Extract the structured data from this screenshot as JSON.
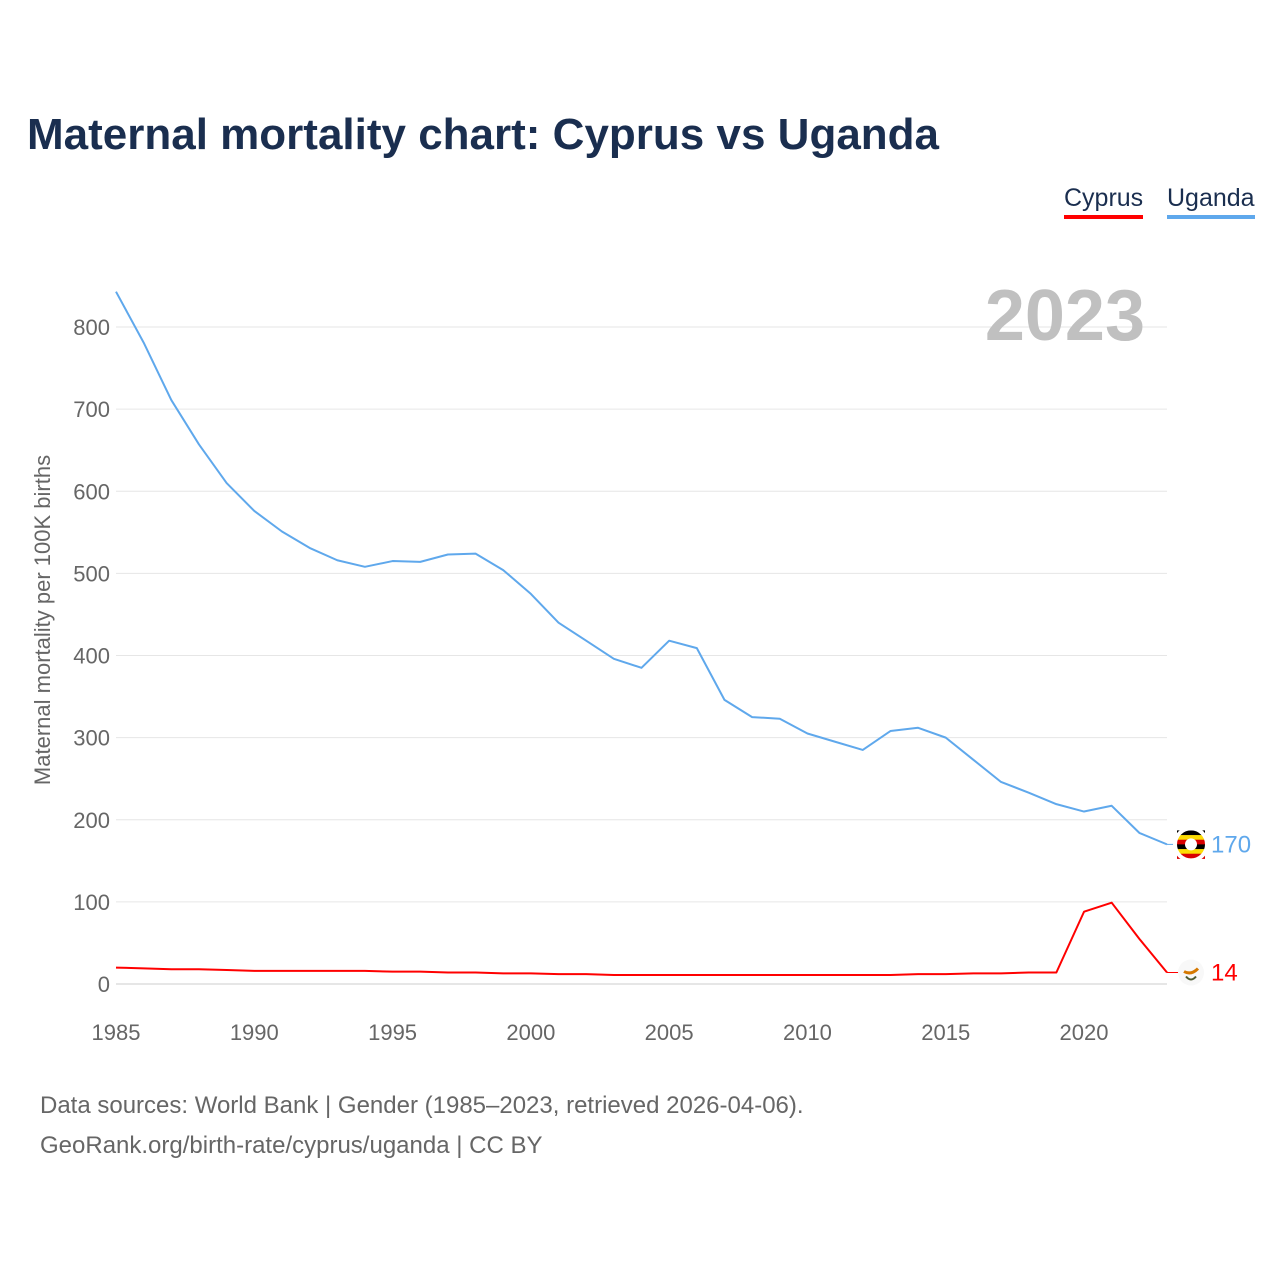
{
  "title": "Maternal mortality chart: Cyprus vs Uganda",
  "footer": {
    "line1": "Data sources: World Bank | Gender (1985–2023, retrieved 2026-04-06).",
    "line2": "GeoRank.org/birth-rate/cyprus/uganda | CC BY"
  },
  "chart_data": {
    "type": "line",
    "title": "Maternal mortality chart: Cyprus vs Uganda",
    "ylabel": "Maternal mortality per 100K births",
    "xlabel": "",
    "year_label": "2023",
    "xlim": [
      1985,
      2023
    ],
    "ylim": [
      0,
      850
    ],
    "xticks": [
      1985,
      1990,
      1995,
      2000,
      2005,
      2010,
      2015,
      2020
    ],
    "yticks": [
      0,
      100,
      200,
      300,
      400,
      500,
      600,
      700,
      800
    ],
    "grid": true,
    "legend_position": "top-right",
    "x": [
      1985,
      1986,
      1987,
      1988,
      1989,
      1990,
      1991,
      1992,
      1993,
      1994,
      1995,
      1996,
      1997,
      1998,
      1999,
      2000,
      2001,
      2002,
      2003,
      2004,
      2005,
      2006,
      2007,
      2008,
      2009,
      2010,
      2011,
      2012,
      2013,
      2014,
      2015,
      2016,
      2017,
      2018,
      2019,
      2020,
      2021,
      2022,
      2023
    ],
    "series": [
      {
        "name": "Cyprus",
        "color": "#ff0000",
        "end_label": "14",
        "values": [
          20,
          19,
          18,
          18,
          17,
          16,
          16,
          16,
          16,
          16,
          15,
          15,
          14,
          14,
          13,
          13,
          12,
          12,
          11,
          11,
          11,
          11,
          11,
          11,
          11,
          11,
          11,
          11,
          11,
          12,
          12,
          13,
          13,
          14,
          14,
          88,
          99,
          55,
          14
        ]
      },
      {
        "name": "Uganda",
        "color": "#5fa8ec",
        "end_label": "170",
        "values": [
          843,
          781,
          711,
          657,
          610,
          576,
          551,
          531,
          516,
          508,
          515,
          514,
          523,
          524,
          504,
          475,
          440,
          418,
          396,
          385,
          418,
          409,
          346,
          325,
          323,
          305,
          295,
          285,
          308,
          312,
          300,
          273,
          246,
          233,
          219,
          210,
          217,
          184,
          170
        ]
      }
    ]
  }
}
